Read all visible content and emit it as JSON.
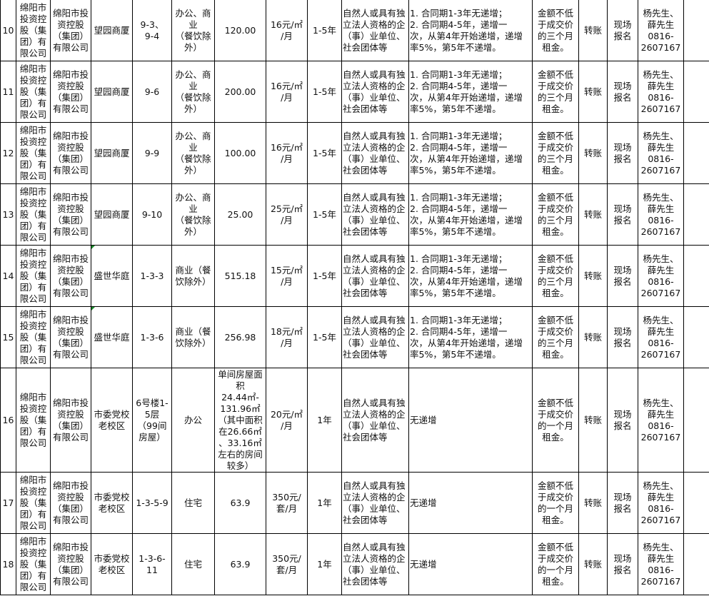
{
  "table": {
    "rows": [
      {
        "no": "10",
        "owner": "绵阳市\n投资控\n股（集\n团）有\n限公司",
        "lessor": "绵阳市投\n资控股\n（集团）\n有限公司",
        "building": "望园商厦",
        "unit": "9-3、\n9-4",
        "use": "办公、商\n业\n（餐饮除\n外）",
        "area": "120.00",
        "price": "16元/㎡\n/月",
        "term": "1-5年",
        "qualification": "自然人或具有独\n立法人资格的企\n（事）业单位、\n社会团体等",
        "increase": "1. 合同期1-3年无递增；\n2. 合同期4-5年，递增一\n次，从第4年开始递增，递增\n率5%，第5年不递增。",
        "deposit": "金额不低\n于成交价\n的三个月\n租金。",
        "payment": "转账",
        "method": "现场\n报名",
        "contact": "杨先生、\n薛先生\n0816-\n2607167",
        "note": "",
        "flag": false
      },
      {
        "no": "11",
        "owner": "绵阳市\n投资控\n股（集\n团）有\n限公司",
        "lessor": "绵阳市投\n资控股\n（集团）\n有限公司",
        "building": "望园商厦",
        "unit": "9-6",
        "use": "办公、商\n业\n（餐饮除\n外）",
        "area": "200.00",
        "price": "16元/㎡\n/月",
        "term": "1-5年",
        "qualification": "自然人或具有独\n立法人资格的企\n（事）业单位、\n社会团体等",
        "increase": "1. 合同期1-3年无递增；\n2. 合同期4-5年，递增一\n次，从第4年开始递增，递增\n率5%，第5年不递增。",
        "deposit": "金额不低\n于成交价\n的三个月\n租金。",
        "payment": "转账",
        "method": "现场\n报名",
        "contact": "杨先生、\n薛先生\n0816-\n2607167",
        "note": "",
        "flag": false
      },
      {
        "no": "12",
        "owner": "绵阳市\n投资控\n股（集\n团）有\n限公司",
        "lessor": "绵阳市投\n资控股\n（集团）\n有限公司",
        "building": "望园商厦",
        "unit": "9-9",
        "use": "办公、商\n业\n（餐饮除\n外）",
        "area": "100.00",
        "price": "16元/㎡\n/月",
        "term": "1-5年",
        "qualification": "自然人或具有独\n立法人资格的企\n（事）业单位、\n社会团体等",
        "increase": "1. 合同期1-3年无递增；\n2. 合同期4-5年，递增一\n次，从第4年开始递增，递增\n率5%，第5年不递增。",
        "deposit": "金额不低\n于成交价\n的三个月\n租金。",
        "payment": "转账",
        "method": "现场\n报名",
        "contact": "杨先生、\n薛先生\n0816-\n2607167",
        "note": "",
        "flag": false
      },
      {
        "no": "13",
        "owner": "绵阳市\n投资控\n股（集\n团）有\n限公司",
        "lessor": "绵阳市投\n资控股\n（集团）\n有限公司",
        "building": "望园商厦",
        "unit": "9-10",
        "use": "办公、商\n业\n（餐饮除\n外）",
        "area": "25.00",
        "price": "25元/㎡\n/月",
        "term": "1-5年",
        "qualification": "自然人或具有独\n立法人资格的企\n（事）业单位、\n社会团体等",
        "increase": "1. 合同期1-3年无递增；\n2. 合同期4-5年，递增一\n次，从第4年开始递增，递增\n率5%，第5年不递增。",
        "deposit": "金额不低\n于成交价\n的三个月\n租金。",
        "payment": "转账",
        "method": "现场\n报名",
        "contact": "杨先生、\n薛先生\n0816-\n2607167",
        "note": "",
        "flag": false
      },
      {
        "no": "14",
        "owner": "绵阳市\n投资控\n股（集\n团）有\n限公司",
        "lessor": "绵阳市投\n资控股\n（集团）\n有限公司",
        "building": "盛世华庭",
        "unit": "1-3-3",
        "use": "商业（餐\n饮除外）",
        "area": "515.18",
        "price": "15元/㎡\n/月",
        "term": "1-5年",
        "qualification": "自然人或具有独\n立法人资格的企\n（事）业单位、\n社会团体等",
        "increase": "1. 合同期1-3年无递增；\n2. 合同期4-5年，递增一\n次，从第4年开始递增，递增\n率5%，第5年不递增。",
        "deposit": "金额不低\n于成交价\n的三个月\n租金。",
        "payment": "转账",
        "method": "现场\n报名",
        "contact": "杨先生、\n薛先生\n0816-\n2607167",
        "note": "",
        "flag": true
      },
      {
        "no": "15",
        "owner": "绵阳市\n投资控\n股（集\n团）有\n限公司",
        "lessor": "绵阳市投\n资控股\n（集团）\n有限公司",
        "building": "盛世华庭",
        "unit": "1-3-6",
        "use": "商业（餐\n饮除外）",
        "area": "256.98",
        "price": "18元/㎡\n/月",
        "term": "1-5年",
        "qualification": "自然人或具有独\n立法人资格的企\n（事）业单位、\n社会团体等",
        "increase": "1. 合同期1-3年无递增；\n2. 合同期4-5年，递增一\n次，从第4年开始递增，递增\n率5%，第5年不递增。",
        "deposit": "金额不低\n于成交价\n的三个月\n租金。",
        "payment": "转账",
        "method": "现场\n报名",
        "contact": "杨先生、\n薛先生\n0816-\n2607167",
        "note": "",
        "flag": true
      },
      {
        "no": "16",
        "owner": "绵阳市\n投资控\n股（集\n团）有\n限公司",
        "lessor": "绵阳市投\n资控股\n（集团）\n有限公司",
        "building": "市委党校\n老校区",
        "unit": "6号楼1-\n5层\n（99间\n房屋）",
        "use": "办公",
        "area": "单间房屋面\n积\n24.44㎡-\n131.96㎡\n（其中面积\n在26.66㎡\n、33.16㎡\n左右的房间\n较多）",
        "price": "20元/㎡\n/月",
        "term": "1年",
        "qualification": "自然人或具有独\n立法人资格的企\n（事）业单位、\n社会团体等",
        "increase": "无递增",
        "deposit": "金额不低\n于成交价\n的一个月\n租金。",
        "payment": "转账",
        "method": "现场\n报名",
        "contact": "杨先生、\n薛先生\n0816-\n2607167",
        "note": "",
        "flag": false,
        "tall": true
      },
      {
        "no": "17",
        "owner": "绵阳市\n投资控\n股（集\n团）有\n限公司",
        "lessor": "绵阳市投\n资控股\n（集团）\n有限公司",
        "building": "市委党校\n老校区",
        "unit": "1-3-5-9",
        "use": "住宅",
        "area": "63.9",
        "price": "350元/\n套/月",
        "term": "1年",
        "qualification": "自然人或具有独\n立法人资格的企\n（事）业单位、\n社会团体等",
        "increase": "无递增",
        "deposit": "金额不低\n于成交价\n的一个月\n租金。",
        "payment": "转账",
        "method": "现场\n报名",
        "contact": "杨先生、\n薛先生\n0816-\n2607167",
        "note": "",
        "flag": false
      },
      {
        "no": "18",
        "owner": "绵阳市\n投资控\n股（集\n团）有\n限公司",
        "lessor": "绵阳市投\n资控股\n（集团）\n有限公司",
        "building": "市委党校\n老校区",
        "unit": "1-3-6-\n11",
        "use": "住宅",
        "area": "63.9",
        "price": "350元/\n套/月",
        "term": "1年",
        "qualification": "自然人或具有独\n立法人资格的企\n（事）业单位、\n社会团体等",
        "increase": "无递增",
        "deposit": "金额不低\n于成交价\n的一个月\n租金。",
        "payment": "转账",
        "method": "现场\n报名",
        "contact": "杨先生、\n薛先生\n0816-\n2607167",
        "note": "",
        "flag": false
      }
    ]
  }
}
